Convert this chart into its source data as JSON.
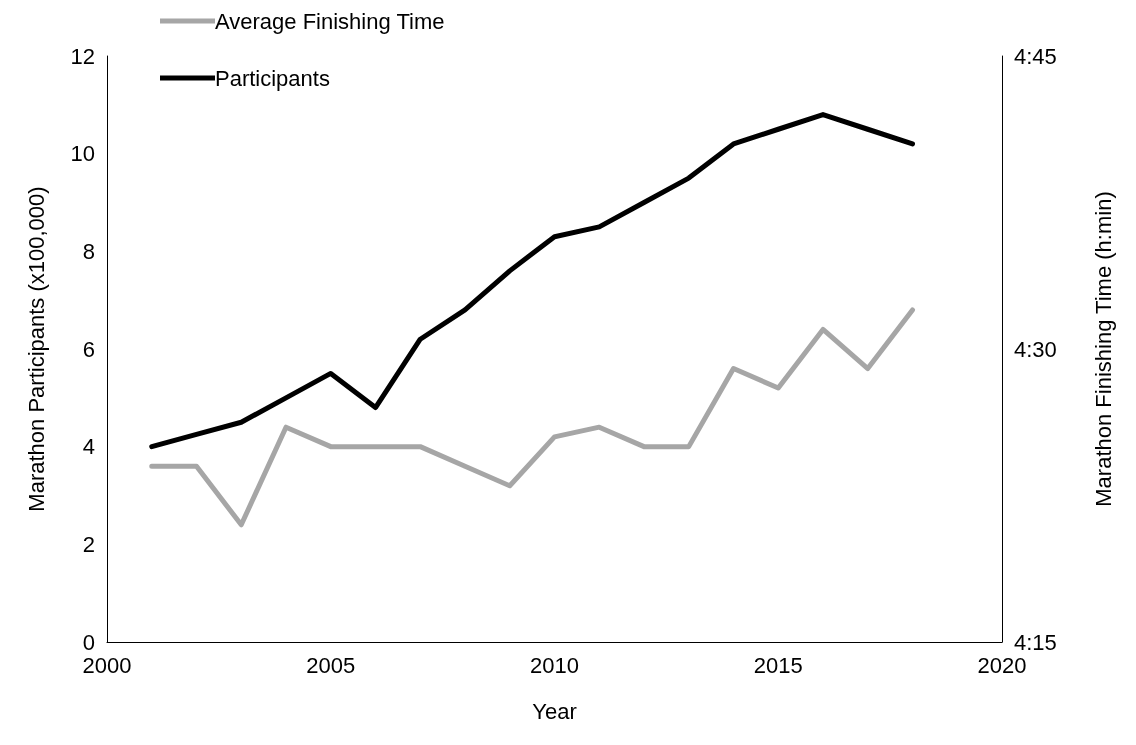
{
  "chart_data": {
    "type": "line",
    "xlabel": "Year",
    "ylabel": "Marathon Participants (x100,000)",
    "y2label": "Marathon Finishing Time (h:min)",
    "x": [
      2001,
      2002,
      2003,
      2004,
      2005,
      2006,
      2007,
      2008,
      2009,
      2010,
      2011,
      2012,
      2013,
      2014,
      2015,
      2016,
      2017,
      2018
    ],
    "series": [
      {
        "name": "Average Finishing Time",
        "color": "#a6a6a6",
        "axis": "y2",
        "values": [
          4.4,
          4.4,
          4.35,
          4.4333,
          4.4167,
          4.4167,
          4.4167,
          4.4,
          4.3833,
          4.425,
          4.4333,
          4.4167,
          4.4167,
          4.4833,
          4.4667,
          4.5167,
          4.4833,
          4.5333
        ]
      },
      {
        "name": "Participants",
        "color": "#000000",
        "values": [
          4.0,
          4.25,
          4.5,
          5.0,
          5.5,
          4.8,
          6.2,
          6.8,
          7.6,
          8.3,
          8.5,
          9.0,
          9.5,
          10.2,
          10.5,
          10.8,
          10.5,
          10.2
        ]
      }
    ],
    "xlim": [
      2000,
      2020
    ],
    "xticks": [
      2000,
      2005,
      2010,
      2015,
      2020
    ],
    "ylim": [
      0,
      12
    ],
    "yticks": [
      0,
      2,
      4,
      6,
      8,
      10,
      12
    ],
    "y2lim": [
      4.25,
      4.75
    ],
    "y2ticks": [
      {
        "value": 4.25,
        "label": "4:15"
      },
      {
        "value": 4.5,
        "label": "4:30"
      },
      {
        "value": 4.75,
        "label": "4:45"
      }
    ],
    "grid": false,
    "legend": "top left",
    "marker": "none",
    "line_style": "solid"
  }
}
